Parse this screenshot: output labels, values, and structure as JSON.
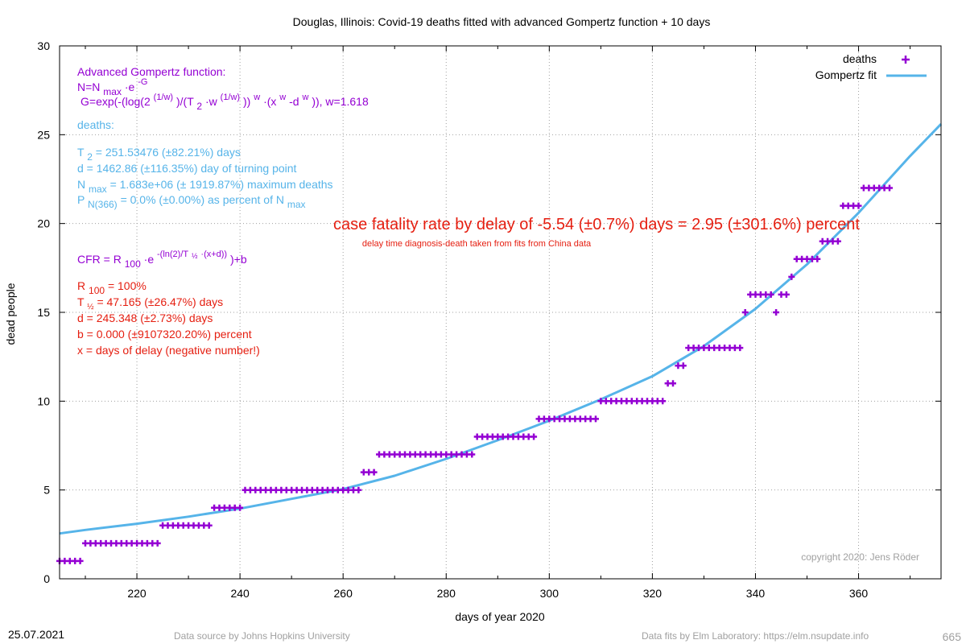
{
  "chart_data": {
    "type": "scatter",
    "title": "Douglas,  Illinois: Covid-19 deaths fitted with advanced Gompertz function + 10 days",
    "xlabel": "days of year 2020",
    "ylabel": "dead people",
    "xlim": [
      205,
      376
    ],
    "ylim": [
      0,
      30
    ],
    "x_ticks": [
      220,
      240,
      260,
      280,
      300,
      320,
      340,
      360
    ],
    "y_ticks": [
      0,
      5,
      10,
      15,
      20,
      25,
      30
    ],
    "grid": true,
    "legend_position": "top-right",
    "series": [
      {
        "name": "deaths",
        "type": "points",
        "color": "#9400d3",
        "runs": [
          {
            "x_from": 205,
            "x_to": 209,
            "y": 1
          },
          {
            "x_from": 210,
            "x_to": 224,
            "y": 2
          },
          {
            "x_from": 225,
            "x_to": 234,
            "y": 3
          },
          {
            "x_from": 235,
            "x_to": 240,
            "y": 4
          },
          {
            "x_from": 241,
            "x_to": 263,
            "y": 5
          },
          {
            "x_from": 264,
            "x_to": 266,
            "y": 6
          },
          {
            "x_from": 267,
            "x_to": 285,
            "y": 7
          },
          {
            "x_from": 286,
            "x_to": 297,
            "y": 8
          },
          {
            "x_from": 298,
            "x_to": 309,
            "y": 9
          },
          {
            "x_from": 310,
            "x_to": 322,
            "y": 10
          },
          {
            "x_from": 323,
            "x_to": 324,
            "y": 11
          },
          {
            "x_from": 325,
            "x_to": 326,
            "y": 12
          },
          {
            "x_from": 327,
            "x_to": 337,
            "y": 13
          },
          {
            "x_from": 338,
            "x_to": 338,
            "y": 15
          },
          {
            "x_from": 339,
            "x_to": 343,
            "y": 16
          },
          {
            "x_from": 344,
            "x_to": 344,
            "y": 15
          },
          {
            "x_from": 345,
            "x_to": 346,
            "y": 16
          },
          {
            "x_from": 347,
            "x_to": 347,
            "y": 17
          },
          {
            "x_from": 348,
            "x_to": 352,
            "y": 18
          },
          {
            "x_from": 353,
            "x_to": 356,
            "y": 19
          },
          {
            "x_from": 357,
            "x_to": 360,
            "y": 21
          },
          {
            "x_from": 361,
            "x_to": 366,
            "y": 22
          }
        ]
      },
      {
        "name": "Gompertz fit",
        "type": "line",
        "color": "#56b4e9",
        "x": [
          205,
          210,
          220,
          230,
          240,
          250,
          260,
          270,
          280,
          290,
          300,
          310,
          320,
          330,
          340,
          350,
          360,
          370,
          376
        ],
        "y": [
          2.55,
          2.75,
          3.1,
          3.5,
          3.95,
          4.5,
          5.05,
          5.8,
          6.75,
          7.8,
          8.9,
          10.1,
          11.4,
          13.1,
          15.2,
          17.7,
          20.6,
          23.8,
          25.6
        ]
      }
    ],
    "annotations": {
      "formula_title": "Advanced Gompertz function:",
      "formula_n_a": "N=N",
      "formula_n_b": "max",
      "formula_n_c": "·e",
      "formula_n_d": "-G",
      "formula_g_a": "G=exp(-(log(2",
      "formula_g_b": "(1/w)",
      "formula_g_c": ")/(T",
      "formula_g_d": "2",
      "formula_g_e": "·w",
      "formula_g_f": "(1/w)",
      "formula_g_g": "))",
      "formula_g_h": "w",
      "formula_g_i": "·(x",
      "formula_g_j": "w",
      "formula_g_k": "-d",
      "formula_g_l": "w",
      "formula_g_m": ")), w=1.618",
      "deaths_label": "deaths:",
      "t2_a": "T",
      "t2_b": "2",
      "t2_c": "= 251.53476 (±82.21%) days",
      "d_line": "d = 1462.86 (±116.35%) day of turning point",
      "nmax_a": "N",
      "nmax_b": "max",
      "nmax_c": "= 1.683e+06 (± 1919.87%) maximum deaths",
      "p_a": "P",
      "p_b": "N(366)",
      "p_c": "= 0.0% (±0.00%) as percent of N",
      "p_d": "max",
      "cfr_headline": "case fatality rate by delay of -5.54 (±0.7%) days = 2.95 (±301.6%) percent",
      "cfr_sub": "delay time diagnosis-death taken from fits from China data",
      "cfr_formula_a": "CFR = R",
      "cfr_formula_b": "100",
      "cfr_formula_c": "·e",
      "cfr_formula_d": "-(ln(2)/T",
      "cfr_formula_e": "½",
      "cfr_formula_f": "·(x+d))",
      "cfr_formula_g": ")+b",
      "r100_a": "R",
      "r100_b": "100",
      "r100_c": "= 100%",
      "thalf_a": "T",
      "thalf_b": "½",
      "thalf_c": "= 47.165 (±26.47%) days",
      "d2_line": "d = 245.348 (±2.73%) days",
      "b_line": "b = 0.000 (±9107320.20%) percent",
      "x_line": "x = days of delay (negative number!)",
      "copyright": "copyright 2020:  Jens Röder"
    }
  },
  "footer": {
    "date": "25.07.2021",
    "source": "Data source by Johns Hopkins University",
    "fits": "Data fits by Elm Laboratory: https://elm.nsupdate.info",
    "page_number": "665"
  }
}
